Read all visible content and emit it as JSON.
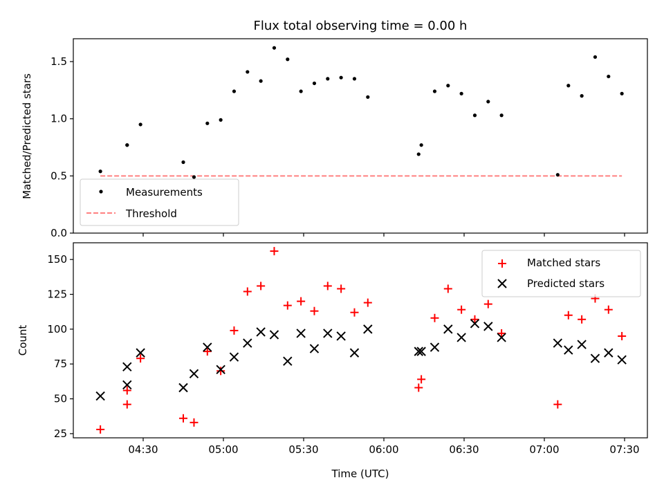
{
  "title": "Flux total observing time = 0.00 h",
  "xlabel": "Time (UTC)",
  "x_ticks": [
    "04:30",
    "05:00",
    "05:30",
    "06:00",
    "06:30",
    "07:00",
    "07:30"
  ],
  "colors": {
    "measurement": "#000000",
    "threshold": "#ff8080",
    "matched": "#ff0000",
    "predicted": "#000000"
  },
  "chart_data": [
    {
      "type": "scatter",
      "ylabel": "Matched/Predicted stars",
      "ylim": [
        0,
        1.7
      ],
      "y_ticks": [
        "0.0",
        "0.5",
        "1.0",
        "1.5"
      ],
      "legend_position": "lower-left",
      "series": [
        {
          "name": "Measurements",
          "x": [
            "04:14",
            "04:24",
            "04:24",
            "04:29",
            "04:45",
            "04:49",
            "04:54",
            "04:59",
            "05:04",
            "05:09",
            "05:14",
            "05:19",
            "05:24",
            "05:29",
            "05:34",
            "05:39",
            "05:44",
            "05:49",
            "05:54",
            "06:13",
            "06:14",
            "06:19",
            "06:24",
            "06:29",
            "06:34",
            "06:39",
            "06:44",
            "07:05",
            "07:09",
            "07:14",
            "07:19",
            "07:24",
            "07:29"
          ],
          "y": [
            0.54,
            0.77,
            0.77,
            0.95,
            0.62,
            0.49,
            0.96,
            0.99,
            1.24,
            1.41,
            1.33,
            1.62,
            1.52,
            1.24,
            1.31,
            1.35,
            1.36,
            1.35,
            1.19,
            0.69,
            0.77,
            1.24,
            1.29,
            1.22,
            1.03,
            1.15,
            1.03,
            0.51,
            1.29,
            1.2,
            1.54,
            1.37,
            1.22
          ]
        },
        {
          "name": "Threshold",
          "x": [
            "04:14",
            "07:29"
          ],
          "y": [
            0.5,
            0.5
          ]
        }
      ]
    },
    {
      "type": "scatter",
      "ylabel": "Count",
      "ylim": [
        22,
        162
      ],
      "y_ticks": [
        "25",
        "50",
        "75",
        "100",
        "125",
        "150"
      ],
      "legend_position": "top-right",
      "series": [
        {
          "name": "Matched stars",
          "x": [
            "04:14",
            "04:24",
            "04:24",
            "04:29",
            "04:45",
            "04:49",
            "04:54",
            "04:59",
            "05:04",
            "05:09",
            "05:14",
            "05:19",
            "05:24",
            "05:29",
            "05:34",
            "05:39",
            "05:44",
            "05:49",
            "05:54",
            "06:13",
            "06:14",
            "06:19",
            "06:24",
            "06:29",
            "06:34",
            "06:39",
            "06:44",
            "07:05",
            "07:09",
            "07:14",
            "07:19",
            "07:24",
            "07:29"
          ],
          "y": [
            28,
            46,
            56,
            79,
            36,
            33,
            84,
            70,
            99,
            127,
            131,
            156,
            117,
            120,
            113,
            131,
            129,
            112,
            119,
            58,
            64,
            108,
            129,
            114,
            107,
            118,
            97,
            46,
            110,
            107,
            122,
            114,
            95
          ]
        },
        {
          "name": "Predicted stars",
          "x": [
            "04:14",
            "04:24",
            "04:24",
            "04:29",
            "04:45",
            "04:49",
            "04:54",
            "04:59",
            "05:04",
            "05:09",
            "05:14",
            "05:19",
            "05:24",
            "05:29",
            "05:34",
            "05:39",
            "05:44",
            "05:49",
            "05:54",
            "06:13",
            "06:14",
            "06:19",
            "06:24",
            "06:29",
            "06:34",
            "06:39",
            "06:44",
            "07:05",
            "07:09",
            "07:14",
            "07:19",
            "07:24",
            "07:29"
          ],
          "y": [
            52,
            60,
            73,
            83,
            58,
            68,
            87,
            71,
            80,
            90,
            98,
            96,
            77,
            97,
            86,
            97,
            95,
            83,
            100,
            84,
            84,
            87,
            100,
            94,
            104,
            102,
            94,
            90,
            85,
            89,
            79,
            83,
            78
          ]
        }
      ]
    }
  ]
}
